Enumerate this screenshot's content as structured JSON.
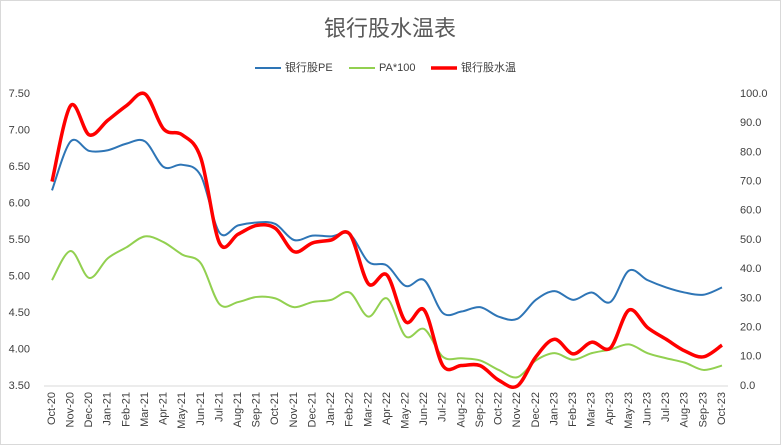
{
  "chart_data": {
    "type": "line",
    "title": "银行股水温表",
    "categories": [
      "Oct-20",
      "Nov-20",
      "Dec-20",
      "Jan-21",
      "Feb-21",
      "Mar-21",
      "Apr-21",
      "May-21",
      "Jun-21",
      "Jul-21",
      "Aug-21",
      "Sep-21",
      "Oct-21",
      "Nov-21",
      "Dec-21",
      "Jan-22",
      "Feb-22",
      "Mar-22",
      "Apr-22",
      "May-22",
      "Jun-22",
      "Jul-22",
      "Aug-22",
      "Sep-22",
      "Oct-22",
      "Nov-22",
      "Dec-22",
      "Jan-23",
      "Feb-23",
      "Mar-23",
      "Apr-23",
      "May-23",
      "Jun-23",
      "Jul-23",
      "Aug-23",
      "Sep-23",
      "Oct-23"
    ],
    "series": [
      {
        "name": "银行股PE",
        "color": "#2e75b6",
        "axis": "y",
        "values": [
          6.18,
          6.85,
          6.72,
          6.73,
          6.82,
          6.85,
          6.5,
          6.53,
          6.38,
          5.6,
          5.7,
          5.74,
          5.72,
          5.5,
          5.56,
          5.55,
          5.58,
          5.2,
          5.15,
          4.87,
          4.95,
          4.5,
          4.52,
          4.58,
          4.45,
          4.42,
          4.68,
          4.8,
          4.68,
          4.78,
          4.65,
          5.08,
          4.95,
          4.85,
          4.78,
          4.75,
          4.85
        ]
      },
      {
        "name": "PA*100",
        "color": "#92d050",
        "axis": "y",
        "values": [
          4.95,
          5.35,
          4.98,
          5.25,
          5.4,
          5.55,
          5.47,
          5.3,
          5.18,
          4.62,
          4.65,
          4.72,
          4.7,
          4.58,
          4.65,
          4.68,
          4.78,
          4.45,
          4.7,
          4.18,
          4.28,
          3.9,
          3.88,
          3.85,
          3.72,
          3.62,
          3.85,
          3.95,
          3.86,
          3.95,
          4.0,
          4.07,
          3.95,
          3.88,
          3.82,
          3.72,
          3.78
        ]
      },
      {
        "name": "银行股水温",
        "color": "#ff0000",
        "axis": "y2",
        "values": [
          70,
          96,
          86,
          91,
          96,
          100,
          88,
          86,
          78,
          49,
          52,
          55,
          54,
          46,
          49,
          50,
          52,
          35,
          38,
          22,
          26,
          7,
          7,
          7,
          2,
          0,
          10,
          16,
          11,
          15,
          13,
          26,
          20,
          16,
          12,
          10,
          14
        ]
      }
    ],
    "ylim": [
      3.5,
      7.5
    ],
    "yticks": [
      {
        "value": 3.5,
        "label": "3.50"
      },
      {
        "value": 4,
        "label": "4.00"
      },
      {
        "value": 4.5,
        "label": "4.50"
      },
      {
        "value": 5,
        "label": "5.00"
      },
      {
        "value": 5.5,
        "label": "5.50"
      },
      {
        "value": 6,
        "label": "6.00"
      },
      {
        "value": 6.5,
        "label": "6.50"
      },
      {
        "value": 7,
        "label": "7.00"
      },
      {
        "value": 7.5,
        "label": "7.50"
      }
    ],
    "y2lim": [
      0,
      100
    ],
    "y2ticks": [
      {
        "value": 0,
        "label": "0.0"
      },
      {
        "value": 10,
        "label": "10.0"
      },
      {
        "value": 20,
        "label": "20.0"
      },
      {
        "value": 30,
        "label": "30.0"
      },
      {
        "value": 40,
        "label": "40.0"
      },
      {
        "value": 50,
        "label": "50.0"
      },
      {
        "value": 60,
        "label": "60.0"
      },
      {
        "value": 70,
        "label": "70.0"
      },
      {
        "value": 80,
        "label": "80.0"
      },
      {
        "value": 90,
        "label": "90.0"
      },
      {
        "value": 100,
        "label": "100.0"
      }
    ],
    "grid": false,
    "legend": "top"
  }
}
